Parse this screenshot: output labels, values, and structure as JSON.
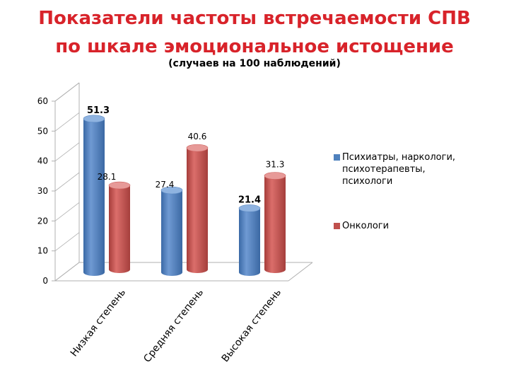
{
  "title_line1": "Показатели частоты встречаемости СПВ",
  "title_line2": "по шкале эмоциональное истощение",
  "subtitle": "(случаев на 100 наблюдений)",
  "colors": {
    "title": "#d8232a",
    "series1": "#4f81bd",
    "series2": "#c0504d"
  },
  "legend": [
    {
      "label": "Психиатры, наркологи,\n   психотерапевты,\nпсихологи",
      "color": "#4f81bd"
    },
    {
      "label": "Онкологи",
      "color": "#c0504d"
    }
  ],
  "chart_data": {
    "type": "bar",
    "style": "3d-cylinder",
    "categories": [
      "Низкая степень",
      "Средняя степень",
      "Высокая степень"
    ],
    "series": [
      {
        "name": "Психиатры, наркологи, психотерапевты, психологи",
        "values": [
          51.3,
          27.4,
          21.4
        ],
        "labels": [
          "51.3",
          "27.4",
          "21.4"
        ]
      },
      {
        "name": "Онкологи",
        "values": [
          28.1,
          40.6,
          31.3
        ],
        "labels": [
          "28.1",
          "40.6",
          "31.3"
        ]
      }
    ],
    "ylim": [
      0,
      60
    ],
    "yticks": [
      "0",
      "10",
      "20",
      "30",
      "40",
      "50",
      "60"
    ],
    "xlabel": "",
    "ylabel": "",
    "legend_position": "right",
    "grid": false
  }
}
